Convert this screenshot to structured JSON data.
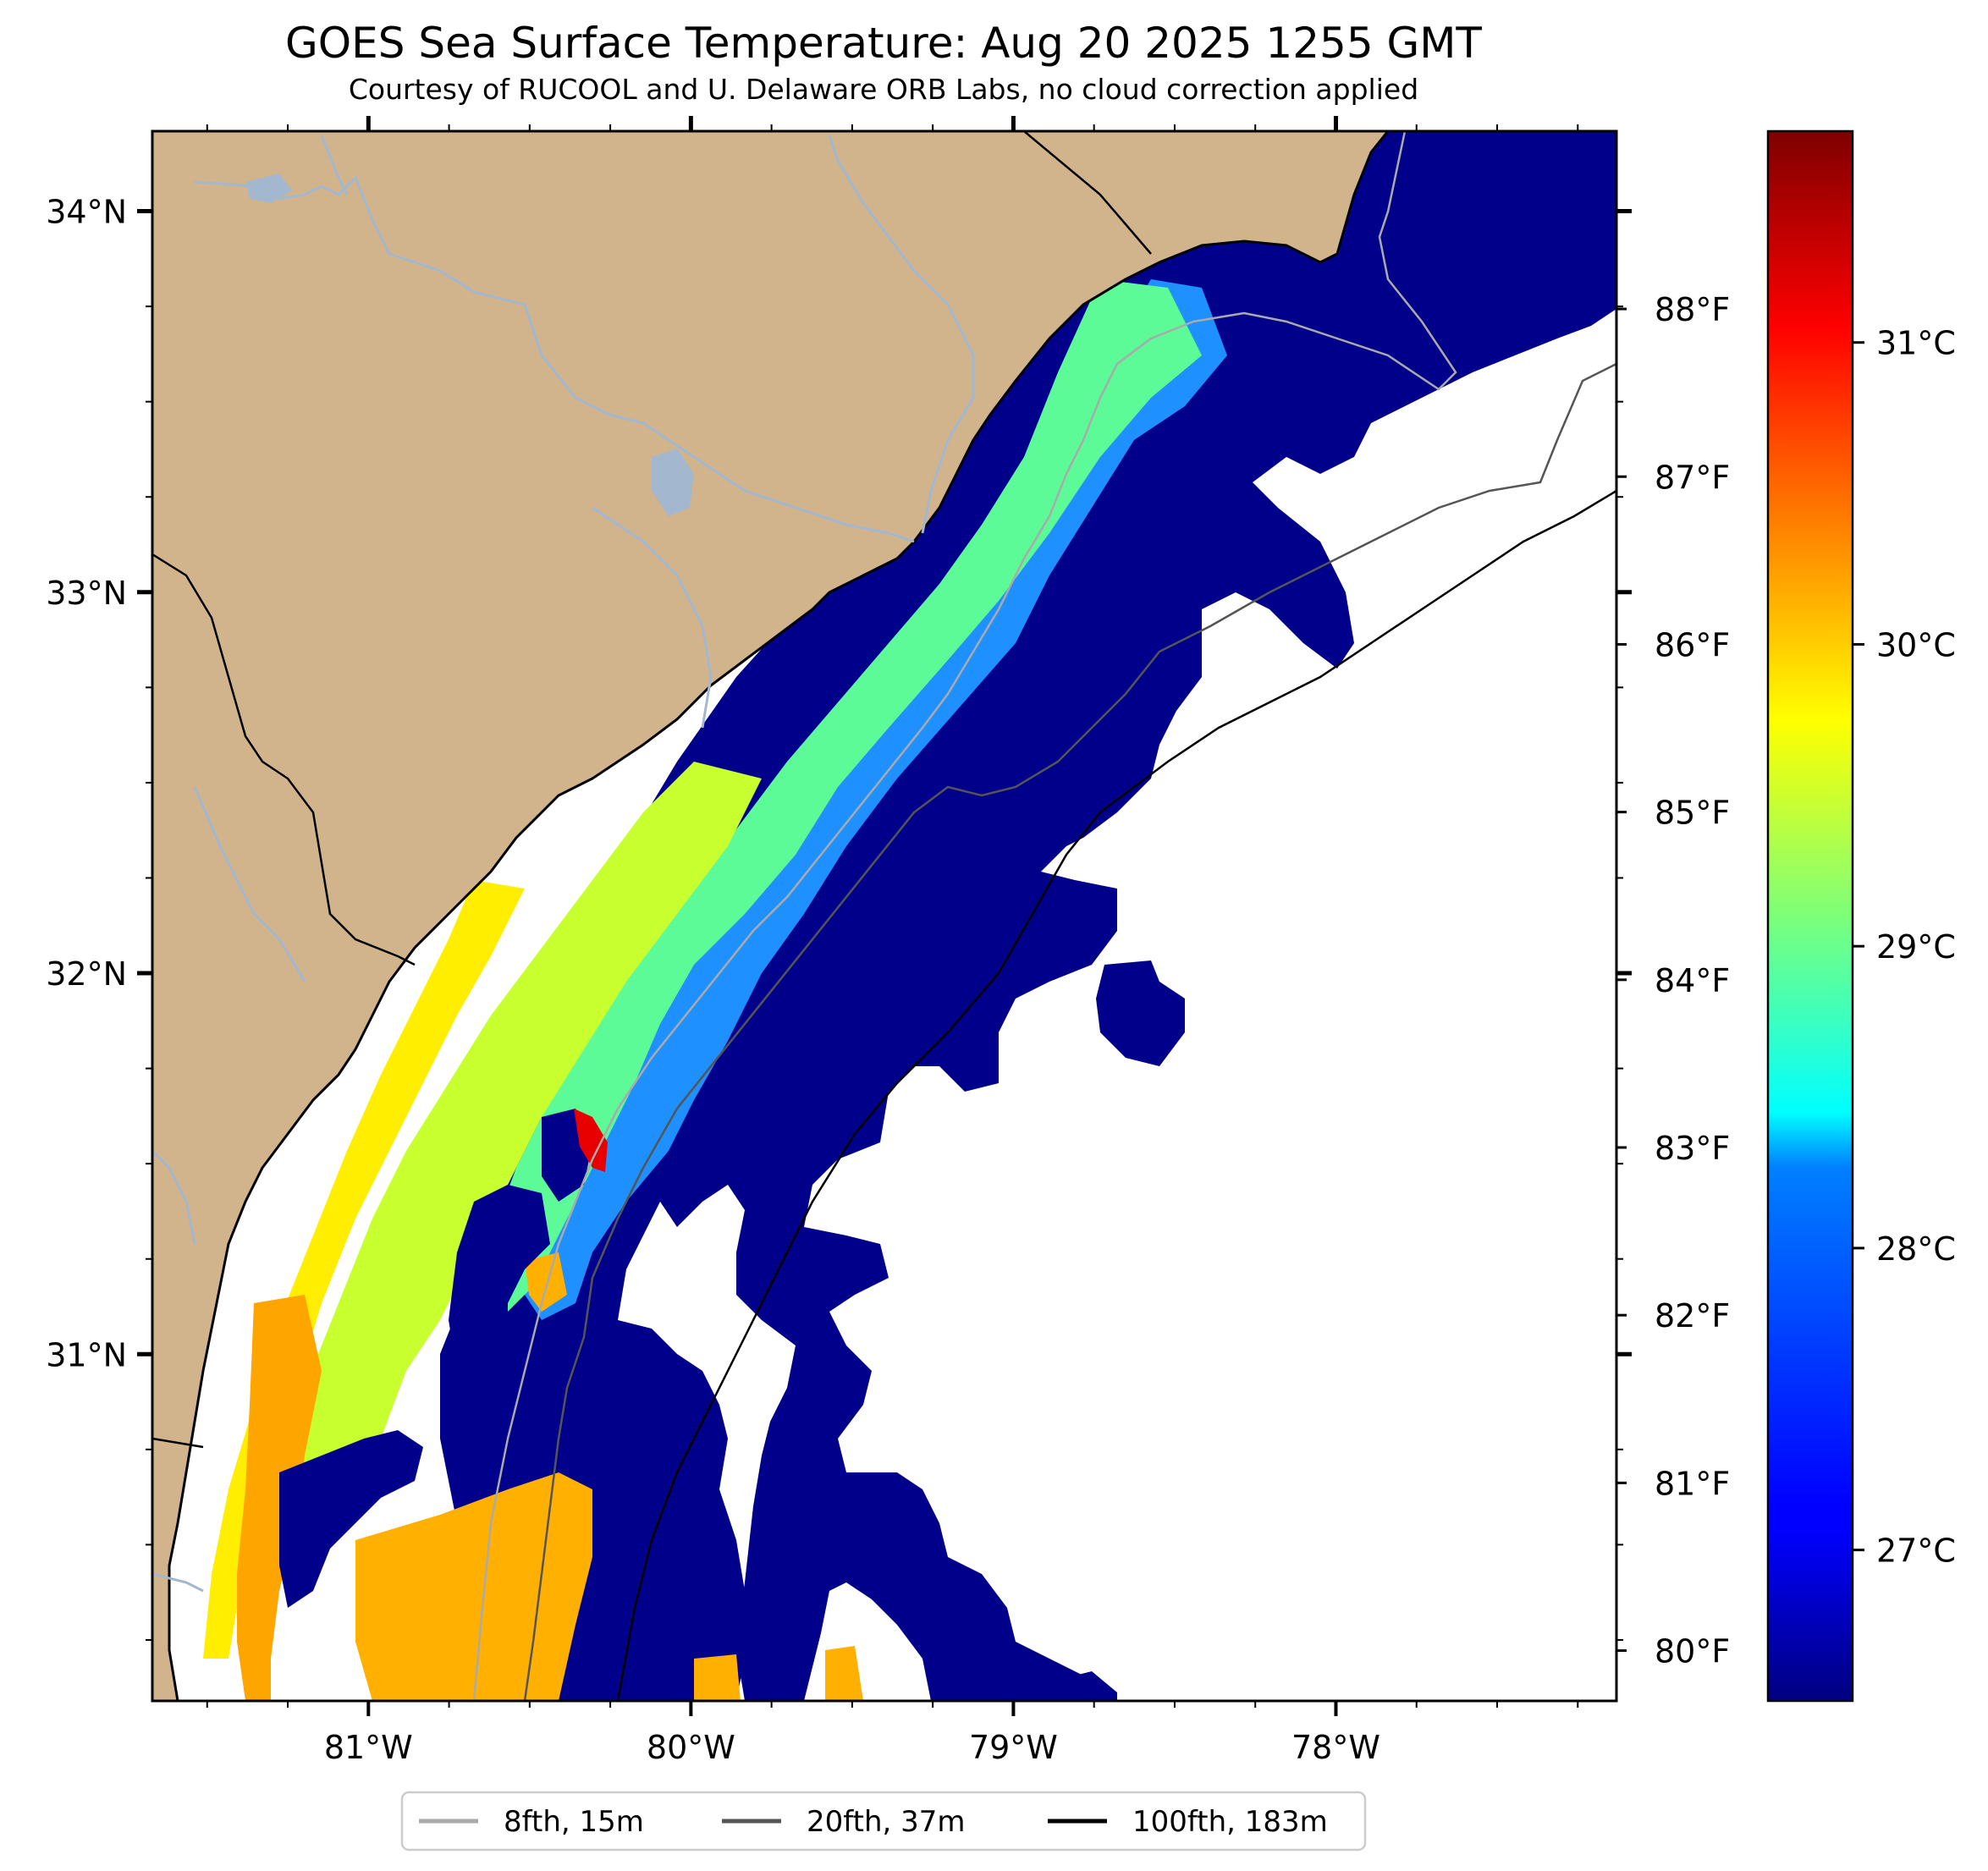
{
  "title": "GOES Sea Surface Temperature: Aug 20 2025 1255 GMT",
  "subtitle": "Courtesy of RUCOOL and U. Delaware ORB Labs, no cloud correction applied",
  "map": {
    "lon_range": [
      -81.67,
      -77.13
    ],
    "lat_range": [
      30.09,
      34.21
    ],
    "lon_ticks": [
      {
        "value": -81,
        "label": "81°W"
      },
      {
        "value": -80,
        "label": "80°W"
      },
      {
        "value": -79,
        "label": "79°W"
      },
      {
        "value": -78,
        "label": "78°W"
      }
    ],
    "lat_ticks": [
      {
        "value": 34,
        "label": "34°N"
      },
      {
        "value": 33,
        "label": "33°N"
      },
      {
        "value": 32,
        "label": "32°N"
      },
      {
        "value": 31,
        "label": "31°N"
      }
    ],
    "fahrenheit_ticks": [
      {
        "value": 88,
        "label": "88°F"
      },
      {
        "value": 87,
        "label": "87°F"
      },
      {
        "value": 86,
        "label": "86°F"
      },
      {
        "value": 85,
        "label": "85°F"
      },
      {
        "value": 84,
        "label": "84°F"
      },
      {
        "value": 83,
        "label": "83°F"
      },
      {
        "value": 82,
        "label": "82°F"
      },
      {
        "value": 81,
        "label": "81°F"
      },
      {
        "value": 80,
        "label": "80°F"
      }
    ],
    "land_color": "#d2b48c",
    "water_line_color": "#a3b7cf",
    "cloud_color": "#ffffff"
  },
  "colorbar": {
    "cmap": "jet",
    "range_c": [
      26.5,
      31.7
    ],
    "ticks": [
      {
        "value": 31,
        "label": "31°C"
      },
      {
        "value": 30,
        "label": "30°C"
      },
      {
        "value": 29,
        "label": "29°C"
      },
      {
        "value": 28,
        "label": "28°C"
      },
      {
        "value": 27,
        "label": "27°C"
      }
    ]
  },
  "legend": {
    "placement": "bottom-center",
    "items": [
      {
        "label": "8fth, 15m",
        "color": "#aaaaaa"
      },
      {
        "label": "20fth, 37m",
        "color": "#555555"
      },
      {
        "label": "100fth, 183m",
        "color": "#000000"
      }
    ]
  }
}
